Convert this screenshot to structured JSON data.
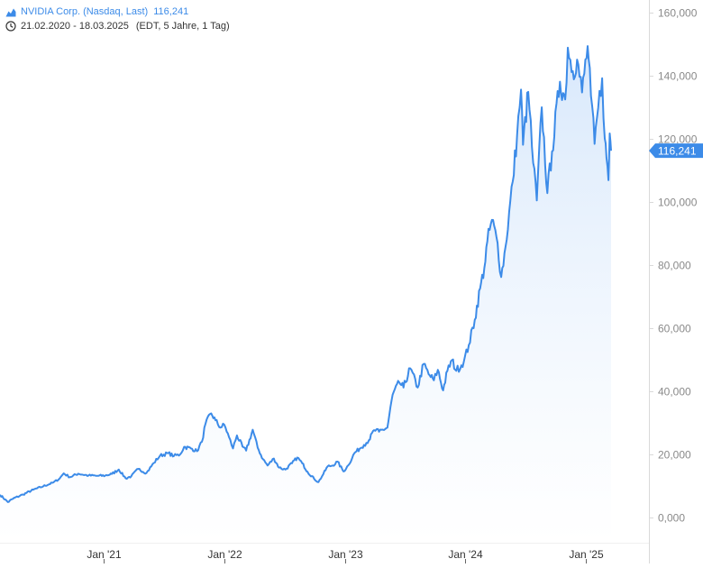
{
  "header": {
    "instrument": "NVIDIA Corp. (Nasdaq, Last)",
    "last_value": "116,241",
    "date_range": "21.02.2020 - 18.03.2025",
    "range_info": "(EDT, 5 Jahre, 1 Tag)",
    "icons": [
      "area-chart-icon",
      "clock-icon"
    ]
  },
  "colors": {
    "line": "#3c8be8",
    "fill_top": "#d6e7fb",
    "fill_bottom": "#ffffff",
    "axis_text": "#8a8a8a",
    "axis_line": "#d9d9d9",
    "badge_bg": "#3c8be8",
    "badge_text": "#ffffff"
  },
  "chart_data": {
    "type": "area",
    "x_type": "date",
    "x_range": [
      "2020-02-21",
      "2025-03-18"
    ],
    "ylim": [
      -8000,
      164000
    ],
    "y_ticks": [
      0,
      20000,
      40000,
      60000,
      80000,
      100000,
      120000,
      140000,
      160000
    ],
    "y_tick_labels": [
      "0,000",
      "20,000",
      "40,000",
      "60,000",
      "80,000",
      "100,000",
      "120,000",
      "140,000",
      "160,000"
    ],
    "x_ticks": [
      "2021-01-01",
      "2022-01-01",
      "2023-01-01",
      "2024-01-01",
      "2025-01-01"
    ],
    "x_tick_labels": [
      "Jan '21",
      "Jan '22",
      "Jan '23",
      "Jan '24",
      "Jan '25"
    ],
    "y_axis_position": "right",
    "grid": false,
    "last_value": 116241,
    "last_value_label": "116,241",
    "series": [
      {
        "values": [
          [
            "2020-02-21",
            7200
          ],
          [
            "2020-03-16",
            4900
          ],
          [
            "2020-04-01",
            6000
          ],
          [
            "2020-05-01",
            7300
          ],
          [
            "2020-06-01",
            8800
          ],
          [
            "2020-07-01",
            9900
          ],
          [
            "2020-08-01",
            11100
          ],
          [
            "2020-08-20",
            12400
          ],
          [
            "2020-09-01",
            14000
          ],
          [
            "2020-09-20",
            12800
          ],
          [
            "2020-10-15",
            13900
          ],
          [
            "2020-11-15",
            13300
          ],
          [
            "2020-12-15",
            13200
          ],
          [
            "2021-01-05",
            13300
          ],
          [
            "2021-01-25",
            13800
          ],
          [
            "2021-02-15",
            15200
          ],
          [
            "2021-03-08",
            12400
          ],
          [
            "2021-03-25",
            13100
          ],
          [
            "2021-04-15",
            15400
          ],
          [
            "2021-05-10",
            14100
          ],
          [
            "2021-06-01",
            17300
          ],
          [
            "2021-06-20",
            19600
          ],
          [
            "2021-07-15",
            20400
          ],
          [
            "2021-08-01",
            19500
          ],
          [
            "2021-08-20",
            20000
          ],
          [
            "2021-09-01",
            22400
          ],
          [
            "2021-09-25",
            21800
          ],
          [
            "2021-10-10",
            21000
          ],
          [
            "2021-10-25",
            24000
          ],
          [
            "2021-11-05",
            29800
          ],
          [
            "2021-11-22",
            33000
          ],
          [
            "2021-12-05",
            30800
          ],
          [
            "2021-12-20",
            28500
          ],
          [
            "2022-01-01",
            29400
          ],
          [
            "2022-01-15",
            25500
          ],
          [
            "2022-01-27",
            21900
          ],
          [
            "2022-02-08",
            26000
          ],
          [
            "2022-02-25",
            22500
          ],
          [
            "2022-03-08",
            21200
          ],
          [
            "2022-03-28",
            27800
          ],
          [
            "2022-04-12",
            22100
          ],
          [
            "2022-04-28",
            18500
          ],
          [
            "2022-05-12",
            16500
          ],
          [
            "2022-05-31",
            18700
          ],
          [
            "2022-06-16",
            15800
          ],
          [
            "2022-07-05",
            15200
          ],
          [
            "2022-07-25",
            17200
          ],
          [
            "2022-08-10",
            19000
          ],
          [
            "2022-08-25",
            17200
          ],
          [
            "2022-09-10",
            14500
          ],
          [
            "2022-09-30",
            12300
          ],
          [
            "2022-10-13",
            11200
          ],
          [
            "2022-10-28",
            13800
          ],
          [
            "2022-11-10",
            16200
          ],
          [
            "2022-11-25",
            16500
          ],
          [
            "2022-12-10",
            17700
          ],
          [
            "2022-12-28",
            14600
          ],
          [
            "2023-01-12",
            16600
          ],
          [
            "2023-01-30",
            20400
          ],
          [
            "2023-02-15",
            21800
          ],
          [
            "2023-02-28",
            23000
          ],
          [
            "2023-03-15",
            24500
          ],
          [
            "2023-03-31",
            27700
          ],
          [
            "2023-04-15",
            27200
          ],
          [
            "2023-05-10",
            28500
          ],
          [
            "2023-05-26",
            38900
          ],
          [
            "2023-06-15",
            42800
          ],
          [
            "2023-06-28",
            41200
          ],
          [
            "2023-07-18",
            47300
          ],
          [
            "2023-08-10",
            41200
          ],
          [
            "2023-08-28",
            48700
          ],
          [
            "2023-09-12",
            45400
          ],
          [
            "2023-09-28",
            43500
          ],
          [
            "2023-10-10",
            46800
          ],
          [
            "2023-10-26",
            40300
          ],
          [
            "2023-11-08",
            46500
          ],
          [
            "2023-11-22",
            49900
          ],
          [
            "2023-12-05",
            46500
          ],
          [
            "2023-12-28",
            49500
          ],
          [
            "2024-01-12",
            54700
          ],
          [
            "2024-01-30",
            62700
          ],
          [
            "2024-02-15",
            72600
          ],
          [
            "2024-02-28",
            79100
          ],
          [
            "2024-03-08",
            87500
          ],
          [
            "2024-03-22",
            94300
          ],
          [
            "2024-04-08",
            87000
          ],
          [
            "2024-04-19",
            76200
          ],
          [
            "2024-05-02",
            85800
          ],
          [
            "2024-05-24",
            106500
          ],
          [
            "2024-06-06",
            121000
          ],
          [
            "2024-06-18",
            135600
          ],
          [
            "2024-06-24",
            118100
          ],
          [
            "2024-07-10",
            134900
          ],
          [
            "2024-07-25",
            112300
          ],
          [
            "2024-08-05",
            100500
          ],
          [
            "2024-08-20",
            130000
          ],
          [
            "2024-09-06",
            102800
          ],
          [
            "2024-09-20",
            116000
          ],
          [
            "2024-10-14",
            138100
          ],
          [
            "2024-10-30",
            132500
          ],
          [
            "2024-11-07",
            148900
          ],
          [
            "2024-11-22",
            141500
          ],
          [
            "2024-12-05",
            145100
          ],
          [
            "2024-12-20",
            134700
          ],
          [
            "2025-01-06",
            149400
          ],
          [
            "2025-01-16",
            133600
          ],
          [
            "2025-01-27",
            118400
          ],
          [
            "2025-02-07",
            129800
          ],
          [
            "2025-02-19",
            139200
          ],
          [
            "2025-02-27",
            120100
          ],
          [
            "2025-03-04",
            114000
          ],
          [
            "2025-03-10",
            106900
          ],
          [
            "2025-03-14",
            121700
          ],
          [
            "2025-03-18",
            116241
          ]
        ]
      }
    ]
  }
}
